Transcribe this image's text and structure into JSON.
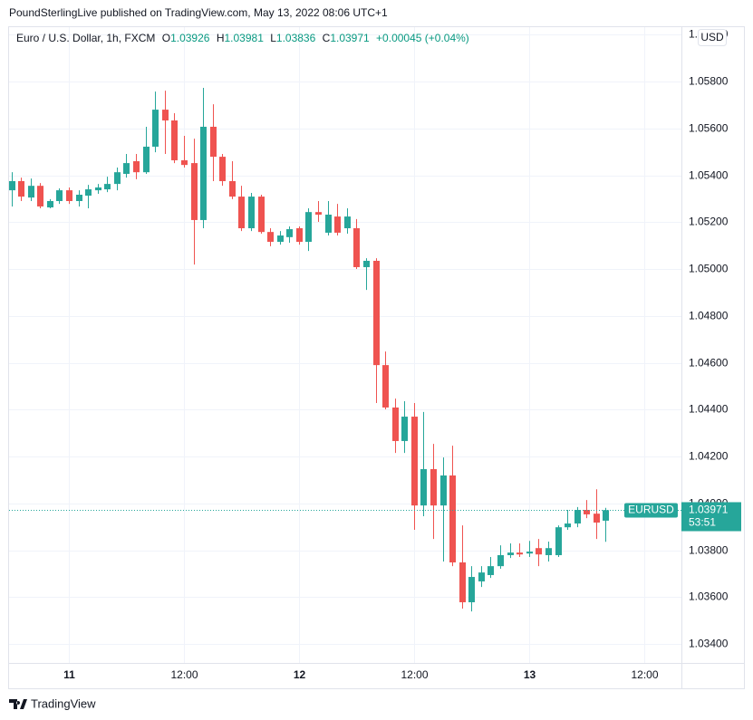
{
  "attribution": "PoundSterlingLive published on TradingView.com, May 13, 2022 08:06 UTC+1",
  "legend": {
    "symbol": "Euro / U.S. Dollar, 1h, FXCM",
    "ohlc_labels": [
      "O",
      "H",
      "L",
      "C"
    ],
    "change": "+0.00045 (+0.04%)"
  },
  "currency": "USD",
  "price_tag": {
    "symbol": "EURUSD",
    "countdown": "53:51"
  },
  "footer": {
    "brand": "TradingView"
  },
  "chart_data": {
    "type": "candlestick",
    "up_color": "#26a69a",
    "down_color": "#ef5350",
    "grid": true,
    "x": [
      -6,
      -5,
      -4,
      -3,
      -2,
      -1,
      0,
      1,
      2,
      3,
      4,
      5,
      6,
      7,
      8,
      9,
      10,
      11,
      12,
      13,
      14,
      15,
      16,
      17,
      18,
      19,
      20,
      21,
      22,
      23,
      24,
      25,
      26,
      27,
      28,
      29,
      30,
      31,
      32,
      33,
      34,
      35,
      36,
      37,
      38,
      39,
      40,
      41,
      42,
      43,
      44,
      45,
      46,
      47,
      48,
      49,
      50,
      51,
      52,
      53,
      54,
      55,
      56
    ],
    "open": [
      1.05336,
      1.05375,
      1.05305,
      1.05355,
      1.05263,
      1.0529,
      1.05336,
      1.0529,
      1.05313,
      1.05336,
      1.0534,
      1.05363,
      1.05406,
      1.0546,
      1.05413,
      1.05522,
      1.0568,
      1.05634,
      1.05464,
      1.05452,
      1.05209,
      1.05607,
      1.05479,
      1.05375,
      1.05309,
      1.05174,
      1.05309,
      1.05158,
      1.05116,
      1.05136,
      1.05174,
      1.05116,
      1.05243,
      1.05155,
      1.05224,
      1.05174,
      1.05174,
      1.05008,
      1.05035,
      1.0459,
      1.04409,
      1.04266,
      1.0437,
      1.03991,
      1.04146,
      1.03991,
      1.04119,
      1.03748,
      1.03578,
      1.03667,
      1.03694,
      1.03732,
      1.03779,
      1.0379,
      1.03786,
      1.03809,
      1.03779,
      1.03779,
      1.03898,
      1.03914,
      1.03972,
      1.03956,
      1.03926
    ],
    "high": [
      1.05413,
      1.0539,
      1.05386,
      1.05367,
      1.05298,
      1.05344,
      1.05348,
      1.05336,
      1.05359,
      1.05363,
      1.05394,
      1.05433,
      1.05491,
      1.05491,
      1.05607,
      1.05757,
      1.05761,
      1.05665,
      1.05568,
      1.05556,
      1.05773,
      1.05703,
      1.05491,
      1.0546,
      1.05355,
      1.05325,
      1.05317,
      1.05174,
      1.05162,
      1.05182,
      1.05182,
      1.05259,
      1.0529,
      1.0529,
      1.05278,
      1.05259,
      1.05213,
      1.05046,
      1.05046,
      1.04648,
      1.04447,
      1.04436,
      1.04428,
      1.0439,
      1.04254,
      1.04196,
      1.04246,
      1.03906,
      1.03732,
      1.03732,
      1.03771,
      1.03821,
      1.03829,
      1.03829,
      1.0384,
      1.03848,
      1.03837,
      1.03906,
      1.03972,
      1.03984,
      1.04014,
      1.0406,
      1.03981
    ],
    "low": [
      1.05267,
      1.0529,
      1.0529,
      1.05259,
      1.05259,
      1.05278,
      1.05278,
      1.05267,
      1.05259,
      1.05321,
      1.05328,
      1.05336,
      1.0539,
      1.05383,
      1.05406,
      1.05498,
      1.05491,
      1.05452,
      1.05433,
      1.05019,
      1.05174,
      1.05375,
      1.05355,
      1.05298,
      1.05162,
      1.05162,
      1.05151,
      1.05097,
      1.05104,
      1.05112,
      1.05104,
      1.05077,
      1.05201,
      1.05143,
      1.05143,
      1.05151,
      1.05,
      1.04911,
      1.04428,
      1.04401,
      1.04215,
      1.04215,
      1.03887,
      1.03945,
      1.03848,
      1.03752,
      1.03732,
      1.03551,
      1.03539,
      1.03643,
      1.03682,
      1.03721,
      1.03767,
      1.03771,
      1.03771,
      1.03732,
      1.03752,
      1.03771,
      1.03887,
      1.03898,
      1.03937,
      1.03848,
      1.03836
    ],
    "close": [
      1.05375,
      1.05309,
      1.05355,
      1.05267,
      1.0529,
      1.05336,
      1.0529,
      1.05317,
      1.0534,
      1.05348,
      1.05363,
      1.05413,
      1.05452,
      1.05413,
      1.05522,
      1.0568,
      1.05634,
      1.05464,
      1.05444,
      1.05209,
      1.05607,
      1.05479,
      1.05375,
      1.05309,
      1.05174,
      1.05309,
      1.05158,
      1.05116,
      1.05143,
      1.0517,
      1.05116,
      1.05243,
      1.05232,
      1.05232,
      1.05155,
      1.05224,
      1.05008,
      1.05035,
      1.0459,
      1.04409,
      1.04266,
      1.0437,
      1.03991,
      1.04146,
      1.03991,
      1.04119,
      1.03748,
      1.03578,
      1.03686,
      1.03705,
      1.03732,
      1.03779,
      1.0379,
      1.03782,
      1.03794,
      1.03782,
      1.03809,
      1.03898,
      1.03914,
      1.03972,
      1.03953,
      1.03918,
      1.03971
    ],
    "xlim": [
      -6.24,
      63.9
    ],
    "xticks": [
      {
        "value": 0,
        "label": "11"
      },
      {
        "value": 12,
        "label": "12:00"
      },
      {
        "value": 24,
        "label": "12"
      },
      {
        "value": 36,
        "label": "12:00"
      },
      {
        "value": 48,
        "label": "13"
      },
      {
        "value": 60,
        "label": "12:00"
      }
    ],
    "ylim": [
      1.03319,
      1.06032
    ],
    "yticks": [
      {
        "value": 1.034,
        "label": "1.03400"
      },
      {
        "value": 1.036,
        "label": "1.03600"
      },
      {
        "value": 1.038,
        "label": "1.03800"
      },
      {
        "value": 1.04,
        "label": "1.04000"
      },
      {
        "value": 1.042,
        "label": "1.04200"
      },
      {
        "value": 1.044,
        "label": "1.04400"
      },
      {
        "value": 1.046,
        "label": "1.04600"
      },
      {
        "value": 1.048,
        "label": "1.04800"
      },
      {
        "value": 1.05,
        "label": "1.05000"
      },
      {
        "value": 1.052,
        "label": "1.05200"
      },
      {
        "value": 1.054,
        "label": "1.05400"
      },
      {
        "value": 1.056,
        "label": "1.05600"
      },
      {
        "value": 1.058,
        "label": "1.05800"
      },
      {
        "value": 1.06,
        "label": "1.06000"
      }
    ]
  }
}
